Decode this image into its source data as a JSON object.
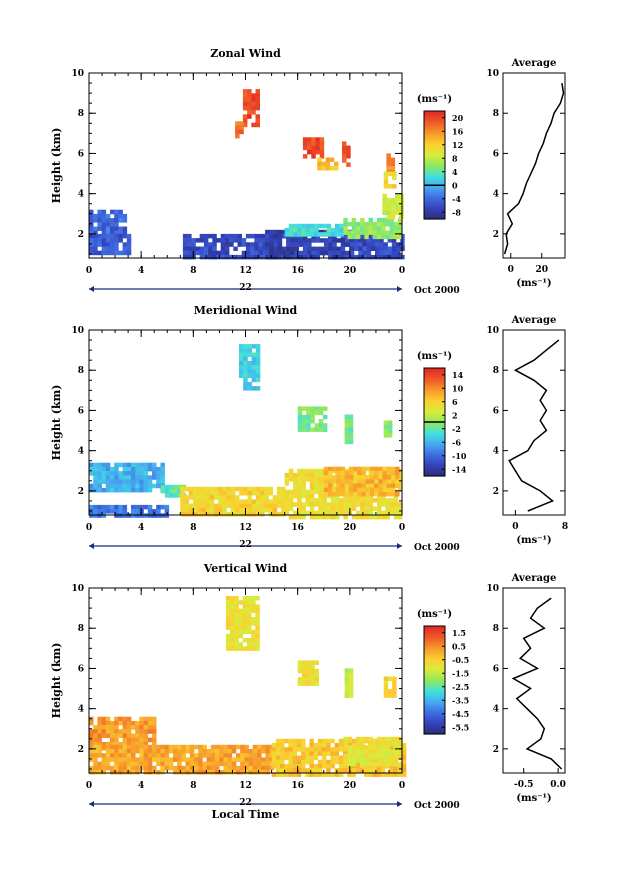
{
  "chart_data": [
    {
      "type": "heatmap",
      "title": "Zonal Wind",
      "ylabel": "Height (km)",
      "xticks": [
        "0",
        "4",
        "8",
        "12",
        "16",
        "20",
        "0"
      ],
      "xlim": [
        0,
        24
      ],
      "yticks": [
        "2",
        "4",
        "6",
        "8",
        "10"
      ],
      "ylim": [
        0.8,
        10
      ],
      "date_label": "22",
      "date_suffix": "Oct 2000",
      "colorbar": {
        "unit_label": "(ms⁻¹)",
        "ticks": [
          "20",
          "16",
          "12",
          "8",
          "4",
          "0",
          "-4",
          "-8"
        ],
        "range": [
          -10,
          22
        ],
        "zero_line": 0,
        "colors": [
          "#2a2d6e",
          "#3340b8",
          "#3f6ae0",
          "#46a8f0",
          "#40e0e0",
          "#8ee860",
          "#d8ec3c",
          "#fbd030",
          "#f79a2c",
          "#f05a28",
          "#e02a24"
        ]
      },
      "regions": [
        {
          "x": [
            0.0,
            2.6
          ],
          "y": [
            2.0,
            3.2
          ],
          "value": -4
        },
        {
          "x": [
            0.0,
            3.0
          ],
          "y": [
            1.0,
            2.0
          ],
          "value": -5
        },
        {
          "x": [
            7.2,
            13.5
          ],
          "y": [
            0.8,
            2.0
          ],
          "value": -6
        },
        {
          "x": [
            13.5,
            20.0
          ],
          "y": [
            0.9,
            2.2
          ],
          "value": -7
        },
        {
          "x": [
            20.0,
            24.0
          ],
          "y": [
            0.9,
            2.0
          ],
          "value": -6
        },
        {
          "x": [
            15.0,
            19.5
          ],
          "y": [
            1.9,
            2.5
          ],
          "value": 3
        },
        {
          "x": [
            19.5,
            23.8
          ],
          "y": [
            1.9,
            2.8
          ],
          "value": 6
        },
        {
          "x": [
            22.5,
            24.0
          ],
          "y": [
            2.8,
            4.0
          ],
          "value": 9
        },
        {
          "x": [
            11.8,
            13.0
          ],
          "y": [
            7.5,
            9.2
          ],
          "value": 20
        },
        {
          "x": [
            11.2,
            11.8
          ],
          "y": [
            6.8,
            7.6
          ],
          "value": 18
        },
        {
          "x": [
            16.4,
            17.9
          ],
          "y": [
            5.9,
            6.8
          ],
          "value": 20
        },
        {
          "x": [
            19.4,
            19.8
          ],
          "y": [
            5.5,
            6.6
          ],
          "value": 19
        },
        {
          "x": [
            17.5,
            19.0
          ],
          "y": [
            5.2,
            5.8
          ],
          "value": 14
        },
        {
          "x": [
            22.8,
            23.4
          ],
          "y": [
            5.0,
            6.0
          ],
          "value": 17
        },
        {
          "x": [
            22.6,
            23.4
          ],
          "y": [
            4.3,
            5.1
          ],
          "value": 12
        }
      ],
      "profile": {
        "title": "Average",
        "xticks": [
          "0",
          "20"
        ],
        "xtick_values": [
          0,
          20
        ],
        "xlim": [
          -5,
          35
        ],
        "unit_label": "(ms⁻¹)",
        "height": [
          1.0,
          1.5,
          2.0,
          2.5,
          3.0,
          3.5,
          4.0,
          4.5,
          5.0,
          5.5,
          6.0,
          6.5,
          7.0,
          7.5,
          8.0,
          8.5,
          9.0,
          9.5
        ],
        "values": [
          -4,
          -2,
          -3,
          1,
          -2,
          5,
          8,
          10,
          13,
          16,
          18,
          21,
          23,
          26,
          28,
          32,
          34,
          33
        ]
      }
    },
    {
      "type": "heatmap",
      "title": "Meridional Wind",
      "ylabel": "Height (km)",
      "xticks": [
        "0",
        "4",
        "8",
        "12",
        "16",
        "20",
        "0"
      ],
      "xlim": [
        0,
        24
      ],
      "yticks": [
        "2",
        "4",
        "6",
        "8",
        "10"
      ],
      "ylim": [
        0.8,
        10
      ],
      "date_label": "22",
      "date_suffix": "Oct 2000",
      "colorbar": {
        "unit_label": "(ms⁻¹)",
        "ticks": [
          "14",
          "10",
          "6",
          "2",
          "-2",
          "-6",
          "-10",
          "-14"
        ],
        "range": [
          -16,
          16
        ],
        "zero_line": 0,
        "colors": [
          "#2a2d6e",
          "#3340b8",
          "#3f6ae0",
          "#46a8f0",
          "#40e0e0",
          "#8ee860",
          "#d8ec3c",
          "#fbd030",
          "#f79a2c",
          "#f05a28",
          "#e02a24"
        ]
      },
      "regions": [
        {
          "x": [
            0.0,
            5.5
          ],
          "y": [
            2.0,
            3.4
          ],
          "value": -6
        },
        {
          "x": [
            0.0,
            6.0
          ],
          "y": [
            0.8,
            1.3
          ],
          "value": -9
        },
        {
          "x": [
            5.5,
            7.2
          ],
          "y": [
            1.7,
            2.3
          ],
          "value": -2
        },
        {
          "x": [
            7.0,
            15.0
          ],
          "y": [
            0.8,
            2.2
          ],
          "value": 6
        },
        {
          "x": [
            15.0,
            24.0
          ],
          "y": [
            0.8,
            3.1
          ],
          "value": 5
        },
        {
          "x": [
            18.0,
            23.5
          ],
          "y": [
            1.8,
            3.2
          ],
          "value": 8
        },
        {
          "x": [
            11.5,
            12.8
          ],
          "y": [
            7.2,
            9.3
          ],
          "value": -4
        },
        {
          "x": [
            16.0,
            18.0
          ],
          "y": [
            5.0,
            6.2
          ],
          "value": -1
        },
        {
          "x": [
            19.6,
            20.0
          ],
          "y": [
            4.4,
            5.8
          ],
          "value": -1
        },
        {
          "x": [
            22.6,
            23.2
          ],
          "y": [
            4.8,
            5.5
          ],
          "value": 0
        }
      ],
      "profile": {
        "title": "Average",
        "xticks": [
          "0",
          "8"
        ],
        "xtick_values": [
          0,
          8
        ],
        "xlim": [
          -2,
          8
        ],
        "unit_label": "(ms⁻¹)",
        "height": [
          1.0,
          1.5,
          2.0,
          2.5,
          3.0,
          3.5,
          4.0,
          4.5,
          5.0,
          5.5,
          6.0,
          6.5,
          7.0,
          7.5,
          8.0,
          8.5,
          9.0,
          9.5
        ],
        "values": [
          2,
          6,
          4,
          1,
          0,
          -1,
          2,
          3,
          5,
          4,
          5,
          4,
          5,
          3,
          0,
          3,
          5,
          7
        ]
      }
    },
    {
      "type": "heatmap",
      "title": "Vertical Wind",
      "ylabel": "Height (km)",
      "xlabel": "Local Time",
      "xticks": [
        "0",
        "4",
        "8",
        "12",
        "16",
        "20",
        "0"
      ],
      "xlim": [
        0,
        24
      ],
      "yticks": [
        "2",
        "4",
        "6",
        "8",
        "10"
      ],
      "ylim": [
        0.8,
        10
      ],
      "date_label": "22",
      "date_suffix": "Oct 2000",
      "colorbar": {
        "unit_label": "(ms⁻¹)",
        "ticks": [
          "1.5",
          "0.5",
          "-0.5",
          "-1.5",
          "-2.5",
          "-3.5",
          "-4.5",
          "-5.5"
        ],
        "range": [
          -6,
          2
        ],
        "colors": [
          "#2a2d6e",
          "#3340b8",
          "#3f6ae0",
          "#46a8f0",
          "#40e0e0",
          "#8ee860",
          "#d8ec3c",
          "#fbd030",
          "#f79a2c",
          "#f05a28",
          "#e02a24"
        ]
      },
      "regions": [
        {
          "x": [
            0.0,
            5.0
          ],
          "y": [
            2.0,
            3.6
          ],
          "value": 0.4
        },
        {
          "x": [
            0.0,
            14.0
          ],
          "y": [
            0.8,
            2.2
          ],
          "value": 0.2
        },
        {
          "x": [
            14.0,
            24.0
          ],
          "y": [
            0.8,
            2.5
          ],
          "value": -0.3
        },
        {
          "x": [
            19.5,
            24.0
          ],
          "y": [
            1.2,
            2.6
          ],
          "value": -0.9
        },
        {
          "x": [
            10.5,
            12.8
          ],
          "y": [
            7.0,
            9.6
          ],
          "value": -0.8
        },
        {
          "x": [
            16.0,
            17.6
          ],
          "y": [
            5.2,
            6.4
          ],
          "value": -0.8
        },
        {
          "x": [
            19.6,
            20.1
          ],
          "y": [
            4.6,
            6.0
          ],
          "value": -1.3
        },
        {
          "x": [
            22.6,
            23.3
          ],
          "y": [
            4.6,
            5.6
          ],
          "value": -0.6
        }
      ],
      "profile": {
        "title": "Average",
        "xticks": [
          "-0.5",
          "0.0"
        ],
        "xtick_values": [
          -0.5,
          0.0
        ],
        "xlim": [
          -0.8,
          0.1
        ],
        "unit_label": "(ms⁻¹)",
        "height": [
          1.0,
          1.5,
          2.0,
          2.5,
          3.0,
          3.5,
          4.0,
          4.5,
          5.0,
          5.5,
          6.0,
          6.5,
          7.0,
          7.5,
          8.0,
          8.5,
          9.0,
          9.5
        ],
        "values": [
          0.05,
          -0.1,
          -0.45,
          -0.25,
          -0.2,
          -0.3,
          -0.45,
          -0.6,
          -0.4,
          -0.65,
          -0.3,
          -0.55,
          -0.4,
          -0.5,
          -0.2,
          -0.4,
          -0.3,
          -0.1
        ]
      }
    }
  ]
}
